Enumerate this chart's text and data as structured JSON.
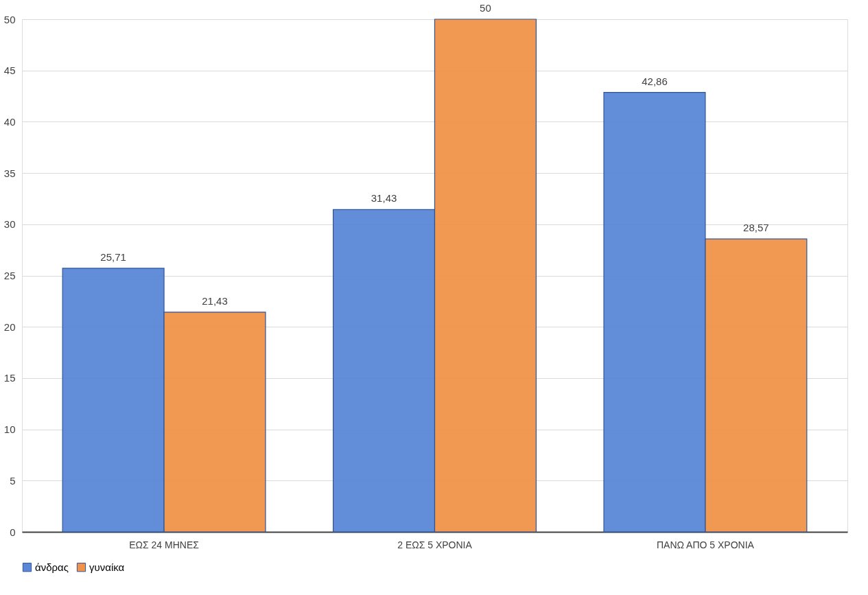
{
  "chart_data": {
    "type": "bar",
    "categories": [
      "ΕΩΣ 24 ΜΗΝΕΣ",
      "2 ΕΩΣ 5 ΧΡΟΝΙΑ",
      "ΠΑΝΩ ΑΠΟ 5 ΧΡΟΝΙΑ"
    ],
    "series": [
      {
        "name": "άνδρας",
        "color": "#5a87d6",
        "values": [
          25.71,
          31.43,
          42.86
        ],
        "value_labels": [
          "25,71",
          "31,43",
          "42,86"
        ]
      },
      {
        "name": "γυναίκα",
        "color": "#f0924a",
        "values": [
          21.43,
          50,
          28.57
        ],
        "value_labels": [
          "21,43",
          "50",
          "28,57"
        ]
      }
    ],
    "ylim": [
      0,
      50
    ],
    "yticks": [
      0,
      5,
      10,
      15,
      20,
      25,
      30,
      35,
      40,
      45,
      50
    ],
    "grid": "y",
    "legend": "bottom"
  }
}
